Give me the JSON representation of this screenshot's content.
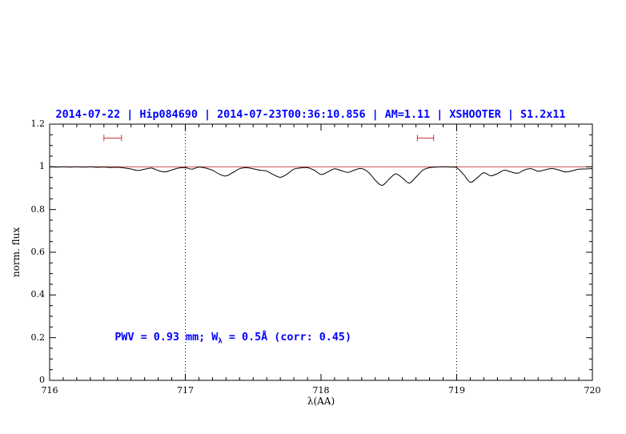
{
  "chart_data": {
    "type": "line",
    "title": "2014-07-22 | Hip084690 | 2014-07-23T00:36:10.856 | AM=1.11 | XSHOOTER | S1.2x11",
    "xlabel": "λ(AA)",
    "ylabel": "norm. flux",
    "xlim": [
      716,
      720
    ],
    "ylim": [
      0,
      1.2
    ],
    "grid": false,
    "legend": "none",
    "xticks": [
      {
        "value": 716,
        "label": "716"
      },
      {
        "value": 717,
        "label": "717"
      },
      {
        "value": 718,
        "label": "718"
      },
      {
        "value": 719,
        "label": "719"
      },
      {
        "value": 720,
        "label": "720"
      }
    ],
    "yticks": [
      {
        "value": 0,
        "label": "0"
      },
      {
        "value": 0.2,
        "label": "0.2"
      },
      {
        "value": 0.4,
        "label": "0.4"
      },
      {
        "value": 0.6,
        "label": "0.6"
      },
      {
        "value": 0.8,
        "label": "0.8"
      },
      {
        "value": 1,
        "label": "1"
      },
      {
        "value": 1.2,
        "label": "1.2"
      }
    ],
    "x_minor_step": 0.1,
    "y_minor_step": 0.05,
    "vlines": {
      "values": [
        717,
        719
      ],
      "style": "dotted"
    },
    "reference_line": {
      "y": 1.0
    },
    "interval_markers": [
      {
        "x1": 716.4,
        "x2": 716.53,
        "y": 1.135
      },
      {
        "x1": 718.71,
        "x2": 718.83,
        "y": 1.135
      }
    ],
    "annotation": {
      "text_full": "PWV = 0.93 mm; Wλ = 0.5Å (corr: 0.45)",
      "text_before_sub": "PWV = 0.93 mm; W",
      "sub": "λ",
      "text_after_sub": " = 0.5Å (corr: 0.45)",
      "x": 716.48,
      "y": 0.2
    },
    "colors": {
      "title": "#0000ff",
      "annotation": "#0000ff",
      "spectrum": "#000000",
      "reference": "#cc3333",
      "markers": "#cc3333",
      "vlines": "#000000",
      "frame": "#000000"
    },
    "series": [
      {
        "name": "spectrum",
        "points": [
          [
            716.0,
            1.0
          ],
          [
            716.05,
            0.999
          ],
          [
            716.1,
            1.0
          ],
          [
            716.15,
            0.999
          ],
          [
            716.2,
            1.0
          ],
          [
            716.25,
            0.999
          ],
          [
            716.3,
            1.0
          ],
          [
            716.35,
            0.998
          ],
          [
            716.4,
            0.999
          ],
          [
            716.45,
            0.997
          ],
          [
            716.5,
            0.998
          ],
          [
            716.55,
            0.995
          ],
          [
            716.6,
            0.99
          ],
          [
            716.65,
            0.983
          ],
          [
            716.7,
            0.989
          ],
          [
            716.75,
            0.994
          ],
          [
            716.8,
            0.983
          ],
          [
            716.85,
            0.976
          ],
          [
            716.9,
            0.985
          ],
          [
            716.95,
            0.994
          ],
          [
            717.0,
            0.996
          ],
          [
            717.05,
            0.989
          ],
          [
            717.1,
            0.999
          ],
          [
            717.15,
            0.994
          ],
          [
            717.2,
            0.984
          ],
          [
            717.25,
            0.966
          ],
          [
            717.3,
            0.957
          ],
          [
            717.35,
            0.973
          ],
          [
            717.4,
            0.991
          ],
          [
            717.45,
            0.996
          ],
          [
            717.5,
            0.991
          ],
          [
            717.55,
            0.984
          ],
          [
            717.6,
            0.98
          ],
          [
            717.65,
            0.963
          ],
          [
            717.7,
            0.951
          ],
          [
            717.75,
            0.966
          ],
          [
            717.8,
            0.989
          ],
          [
            717.85,
            0.995
          ],
          [
            717.9,
            0.996
          ],
          [
            717.95,
            0.984
          ],
          [
            718.0,
            0.964
          ],
          [
            718.05,
            0.976
          ],
          [
            718.1,
            0.991
          ],
          [
            718.15,
            0.982
          ],
          [
            718.2,
            0.974
          ],
          [
            718.25,
            0.986
          ],
          [
            718.3,
            0.992
          ],
          [
            718.35,
            0.974
          ],
          [
            718.4,
            0.937
          ],
          [
            718.45,
            0.913
          ],
          [
            718.5,
            0.941
          ],
          [
            718.55,
            0.967
          ],
          [
            718.6,
            0.948
          ],
          [
            718.65,
            0.924
          ],
          [
            718.7,
            0.952
          ],
          [
            718.75,
            0.984
          ],
          [
            718.8,
            0.996
          ],
          [
            718.85,
            0.999
          ],
          [
            718.9,
            1.0
          ],
          [
            718.95,
            0.999
          ],
          [
            719.0,
            0.996
          ],
          [
            719.05,
            0.965
          ],
          [
            719.1,
            0.928
          ],
          [
            719.15,
            0.948
          ],
          [
            719.2,
            0.972
          ],
          [
            719.25,
            0.958
          ],
          [
            719.3,
            0.968
          ],
          [
            719.35,
            0.984
          ],
          [
            719.4,
            0.976
          ],
          [
            719.45,
            0.97
          ],
          [
            719.5,
            0.986
          ],
          [
            719.55,
            0.991
          ],
          [
            719.6,
            0.979
          ],
          [
            719.65,
            0.986
          ],
          [
            719.7,
            0.992
          ],
          [
            719.75,
            0.986
          ],
          [
            719.8,
            0.976
          ],
          [
            719.85,
            0.981
          ],
          [
            719.9,
            0.989
          ],
          [
            719.95,
            0.99
          ],
          [
            720.0,
            0.992
          ]
        ]
      }
    ]
  }
}
